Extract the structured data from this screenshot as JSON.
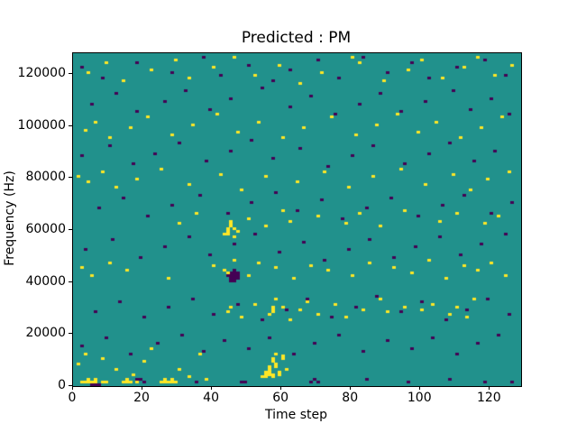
{
  "figure": {
    "title": "Predicted : PM",
    "xlabel": "Time step",
    "ylabel": "Frequency (Hz)"
  },
  "chart_data": {
    "type": "heatmap",
    "title": "Predicted : PM",
    "xlabel": "Time step",
    "ylabel": "Frequency (Hz)",
    "xlim": [
      0,
      129
    ],
    "ylim": [
      0,
      128000
    ],
    "x_ticks": [
      0,
      20,
      40,
      60,
      80,
      100,
      120
    ],
    "y_ticks": [
      0,
      20000,
      40000,
      60000,
      80000,
      100000,
      120000
    ],
    "grid": false,
    "legend": "none",
    "n_time_steps": 129,
    "n_freq_bins": 128,
    "freq_bin_hz": 1000,
    "colormap": {
      "name": "viridis",
      "background": "#21918c",
      "high": "#fde725",
      "low": "#440154"
    },
    "cells_yellow": [
      [
        2,
        1
      ],
      [
        3,
        1
      ],
      [
        4,
        1
      ],
      [
        4,
        2
      ],
      [
        5,
        1
      ],
      [
        6,
        1
      ],
      [
        6,
        2
      ],
      [
        8,
        1
      ],
      [
        9,
        1
      ],
      [
        14,
        1
      ],
      [
        15,
        1
      ],
      [
        15,
        2
      ],
      [
        16,
        1
      ],
      [
        17,
        4
      ],
      [
        18,
        1
      ],
      [
        25,
        1
      ],
      [
        26,
        1
      ],
      [
        26,
        2
      ],
      [
        27,
        1
      ],
      [
        28,
        1
      ],
      [
        28,
        2
      ],
      [
        29,
        1
      ],
      [
        1,
        8
      ],
      [
        3,
        12
      ],
      [
        8,
        10
      ],
      [
        12,
        6
      ],
      [
        20,
        9
      ],
      [
        22,
        14
      ],
      [
        30,
        6
      ],
      [
        33,
        3
      ],
      [
        36,
        12
      ],
      [
        38,
        2
      ],
      [
        54,
        3
      ],
      [
        55,
        3
      ],
      [
        55,
        4
      ],
      [
        55,
        5
      ],
      [
        56,
        4
      ],
      [
        56,
        5
      ],
      [
        56,
        6
      ],
      [
        56,
        7
      ],
      [
        57,
        3
      ],
      [
        57,
        4
      ],
      [
        57,
        9
      ],
      [
        57,
        10
      ],
      [
        58,
        7
      ],
      [
        58,
        8
      ],
      [
        58,
        12
      ],
      [
        59,
        4
      ],
      [
        59,
        5
      ],
      [
        60,
        10
      ],
      [
        60,
        11
      ],
      [
        61,
        6
      ],
      [
        44,
        28
      ],
      [
        45,
        30
      ],
      [
        48,
        26
      ],
      [
        52,
        31
      ],
      [
        56,
        27
      ],
      [
        57,
        28
      ],
      [
        57,
        29
      ],
      [
        57,
        30
      ],
      [
        58,
        33
      ],
      [
        60,
        30
      ],
      [
        62,
        25
      ],
      [
        65,
        29
      ],
      [
        67,
        32
      ],
      [
        70,
        27
      ],
      [
        75,
        31
      ],
      [
        78,
        26
      ],
      [
        83,
        29
      ],
      [
        88,
        33
      ],
      [
        90,
        28
      ],
      [
        95,
        30
      ],
      [
        100,
        29
      ],
      [
        103,
        31
      ],
      [
        108,
        27
      ],
      [
        110,
        30
      ],
      [
        113,
        26
      ],
      [
        115,
        33
      ],
      [
        2,
        45
      ],
      [
        5,
        42
      ],
      [
        10,
        47
      ],
      [
        15,
        44
      ],
      [
        27,
        41
      ],
      [
        40,
        46
      ],
      [
        43,
        44
      ],
      [
        44,
        43
      ],
      [
        46,
        48
      ],
      [
        50,
        42
      ],
      [
        53,
        47
      ],
      [
        58,
        45
      ],
      [
        63,
        41
      ],
      [
        68,
        46
      ],
      [
        73,
        44
      ],
      [
        80,
        42
      ],
      [
        85,
        47
      ],
      [
        92,
        45
      ],
      [
        97,
        43
      ],
      [
        102,
        48
      ],
      [
        107,
        41
      ],
      [
        112,
        46
      ],
      [
        116,
        44
      ],
      [
        120,
        47
      ],
      [
        124,
        42
      ],
      [
        43,
        58
      ],
      [
        44,
        58
      ],
      [
        44,
        59
      ],
      [
        44,
        60
      ],
      [
        45,
        61
      ],
      [
        45,
        62
      ],
      [
        45,
        63
      ],
      [
        46,
        60
      ],
      [
        46,
        57
      ],
      [
        47,
        59
      ],
      [
        30,
        62
      ],
      [
        35,
        66
      ],
      [
        50,
        64
      ],
      [
        55,
        61
      ],
      [
        60,
        67
      ],
      [
        62,
        63
      ],
      [
        70,
        65
      ],
      [
        78,
        62
      ],
      [
        82,
        66
      ],
      [
        88,
        61
      ],
      [
        95,
        67
      ],
      [
        105,
        63
      ],
      [
        110,
        66
      ],
      [
        118,
        62
      ],
      [
        122,
        65
      ],
      [
        1,
        80
      ],
      [
        4,
        78
      ],
      [
        8,
        82
      ],
      [
        12,
        76
      ],
      [
        18,
        79
      ],
      [
        25,
        83
      ],
      [
        33,
        77
      ],
      [
        42,
        81
      ],
      [
        48,
        75
      ],
      [
        55,
        80
      ],
      [
        64,
        78
      ],
      [
        72,
        82
      ],
      [
        79,
        76
      ],
      [
        86,
        80
      ],
      [
        94,
        83
      ],
      [
        101,
        77
      ],
      [
        109,
        81
      ],
      [
        114,
        75
      ],
      [
        119,
        79
      ],
      [
        125,
        82
      ],
      [
        3,
        98
      ],
      [
        6,
        101
      ],
      [
        10,
        95
      ],
      [
        16,
        99
      ],
      [
        21,
        103
      ],
      [
        28,
        96
      ],
      [
        34,
        100
      ],
      [
        41,
        104
      ],
      [
        47,
        97
      ],
      [
        53,
        101
      ],
      [
        60,
        95
      ],
      [
        66,
        99
      ],
      [
        74,
        103
      ],
      [
        81,
        96
      ],
      [
        87,
        100
      ],
      [
        93,
        104
      ],
      [
        99,
        97
      ],
      [
        104,
        101
      ],
      [
        111,
        95
      ],
      [
        117,
        99
      ],
      [
        123,
        103
      ],
      [
        4,
        120
      ],
      [
        9,
        124
      ],
      [
        14,
        117
      ],
      [
        22,
        121
      ],
      [
        29,
        125
      ],
      [
        33,
        118
      ],
      [
        40,
        122
      ],
      [
        46,
        126
      ],
      [
        52,
        119
      ],
      [
        59,
        123
      ],
      [
        65,
        116
      ],
      [
        71,
        120
      ],
      [
        80,
        126
      ],
      [
        82,
        124
      ],
      [
        89,
        117
      ],
      [
        96,
        121
      ],
      [
        100,
        125
      ],
      [
        106,
        118
      ],
      [
        112,
        122
      ],
      [
        116,
        126
      ],
      [
        121,
        119
      ],
      [
        126,
        123
      ]
    ],
    "cells_purple": [
      [
        5,
        0
      ],
      [
        6,
        0
      ],
      [
        7,
        0
      ],
      [
        18,
        2
      ],
      [
        19,
        2
      ],
      [
        20,
        1
      ],
      [
        35,
        1
      ],
      [
        48,
        1
      ],
      [
        49,
        1
      ],
      [
        68,
        1
      ],
      [
        69,
        2
      ],
      [
        70,
        1
      ],
      [
        84,
        2
      ],
      [
        96,
        1
      ],
      [
        108,
        2
      ],
      [
        118,
        1
      ],
      [
        126,
        1
      ],
      [
        2,
        15
      ],
      [
        9,
        18
      ],
      [
        16,
        12
      ],
      [
        24,
        16
      ],
      [
        31,
        19
      ],
      [
        37,
        13
      ],
      [
        43,
        17
      ],
      [
        50,
        14
      ],
      [
        56,
        18
      ],
      [
        63,
        12
      ],
      [
        69,
        16
      ],
      [
        76,
        19
      ],
      [
        83,
        13
      ],
      [
        90,
        17
      ],
      [
        97,
        14
      ],
      [
        103,
        18
      ],
      [
        110,
        12
      ],
      [
        116,
        16
      ],
      [
        122,
        19
      ],
      [
        44,
        42
      ],
      [
        44,
        43
      ],
      [
        45,
        40
      ],
      [
        45,
        41
      ],
      [
        45,
        42
      ],
      [
        45,
        43
      ],
      [
        46,
        40
      ],
      [
        46,
        41
      ],
      [
        46,
        42
      ],
      [
        46,
        43
      ],
      [
        46,
        44
      ],
      [
        47,
        41
      ],
      [
        47,
        42
      ],
      [
        47,
        43
      ],
      [
        6,
        28
      ],
      [
        13,
        32
      ],
      [
        20,
        26
      ],
      [
        27,
        30
      ],
      [
        34,
        33
      ],
      [
        40,
        27
      ],
      [
        47,
        31
      ],
      [
        54,
        25
      ],
      [
        61,
        29
      ],
      [
        67,
        33
      ],
      [
        74,
        26
      ],
      [
        81,
        30
      ],
      [
        87,
        34
      ],
      [
        94,
        28
      ],
      [
        100,
        32
      ],
      [
        107,
        25
      ],
      [
        113,
        29
      ],
      [
        119,
        33
      ],
      [
        125,
        27
      ],
      [
        3,
        52
      ],
      [
        11,
        56
      ],
      [
        19,
        49
      ],
      [
        26,
        53
      ],
      [
        33,
        57
      ],
      [
        39,
        50
      ],
      [
        46,
        54
      ],
      [
        52,
        58
      ],
      [
        59,
        51
      ],
      [
        66,
        55
      ],
      [
        72,
        48
      ],
      [
        79,
        52
      ],
      [
        85,
        56
      ],
      [
        92,
        49
      ],
      [
        98,
        53
      ],
      [
        105,
        57
      ],
      [
        111,
        50
      ],
      [
        117,
        54
      ],
      [
        124,
        58
      ],
      [
        7,
        68
      ],
      [
        14,
        72
      ],
      [
        21,
        65
      ],
      [
        28,
        69
      ],
      [
        36,
        73
      ],
      [
        44,
        66
      ],
      [
        51,
        70
      ],
      [
        58,
        74
      ],
      [
        64,
        67
      ],
      [
        71,
        71
      ],
      [
        77,
        64
      ],
      [
        84,
        68
      ],
      [
        91,
        72
      ],
      [
        99,
        65
      ],
      [
        106,
        69
      ],
      [
        112,
        73
      ],
      [
        120,
        66
      ],
      [
        126,
        70
      ],
      [
        2,
        88
      ],
      [
        10,
        92
      ],
      [
        17,
        85
      ],
      [
        23,
        89
      ],
      [
        30,
        93
      ],
      [
        38,
        86
      ],
      [
        45,
        90
      ],
      [
        51,
        94
      ],
      [
        57,
        87
      ],
      [
        65,
        91
      ],
      [
        73,
        84
      ],
      [
        80,
        88
      ],
      [
        86,
        92
      ],
      [
        95,
        85
      ],
      [
        102,
        89
      ],
      [
        108,
        93
      ],
      [
        115,
        86
      ],
      [
        121,
        90
      ],
      [
        5,
        108
      ],
      [
        12,
        112
      ],
      [
        18,
        105
      ],
      [
        26,
        109
      ],
      [
        32,
        113
      ],
      [
        39,
        106
      ],
      [
        45,
        110
      ],
      [
        54,
        114
      ],
      [
        62,
        107
      ],
      [
        68,
        111
      ],
      [
        75,
        104
      ],
      [
        82,
        108
      ],
      [
        88,
        112
      ],
      [
        94,
        105
      ],
      [
        101,
        109
      ],
      [
        109,
        113
      ],
      [
        114,
        106
      ],
      [
        120,
        110
      ],
      [
        125,
        104
      ],
      [
        2,
        122
      ],
      [
        8,
        118
      ],
      [
        18,
        124
      ],
      [
        28,
        120
      ],
      [
        37,
        126
      ],
      [
        42,
        119
      ],
      [
        50,
        123
      ],
      [
        57,
        117
      ],
      [
        62,
        121
      ],
      [
        70,
        125
      ],
      [
        76,
        118
      ],
      [
        83,
        126
      ],
      [
        90,
        120
      ],
      [
        97,
        124
      ],
      [
        102,
        118
      ],
      [
        110,
        122
      ],
      [
        118,
        125
      ],
      [
        124,
        119
      ]
    ]
  }
}
